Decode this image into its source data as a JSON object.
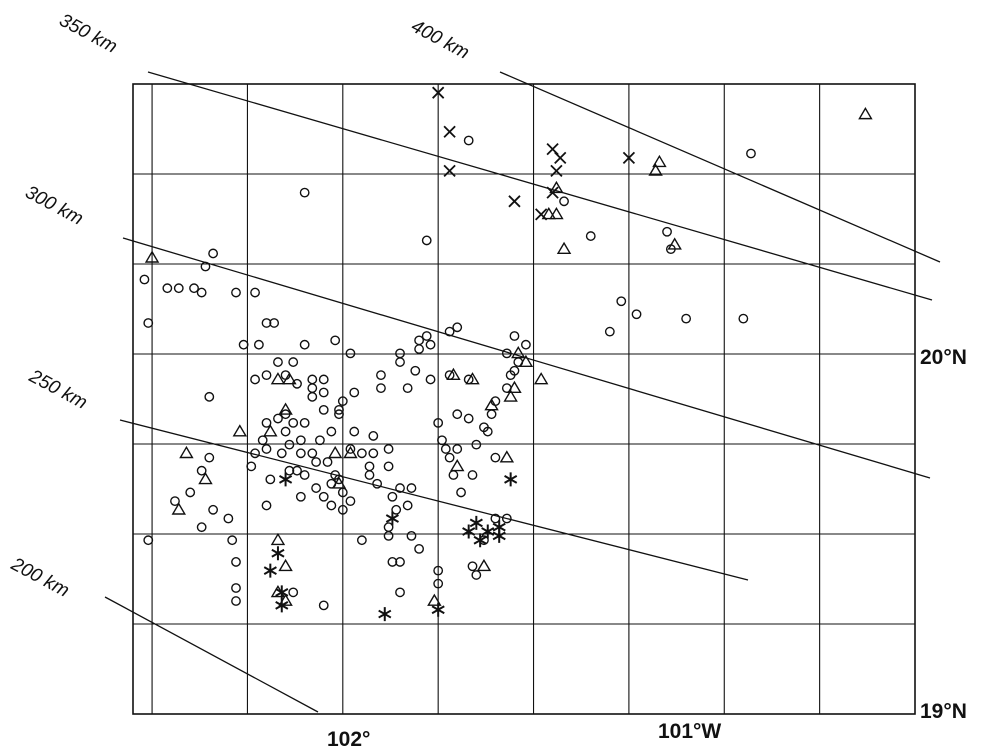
{
  "map": {
    "ink_color": "#111111",
    "background_color": "#ffffff",
    "lon_range": [
      -102.3,
      -100.25
    ],
    "lat_range": [
      18.95,
      20.4
    ],
    "axis_labels": {
      "lon_102": "102°",
      "lon_101": "101°W",
      "lat_20": "20°N",
      "lat_19": "19°N"
    },
    "contours": [
      {
        "label": "200 km",
        "km": 200
      },
      {
        "label": "250 km",
        "km": 250
      },
      {
        "label": "300 km",
        "km": 300
      },
      {
        "label": "350 km",
        "km": 350
      },
      {
        "label": "400 km",
        "km": 400
      }
    ],
    "symbol_types": [
      "circle",
      "triangle",
      "cross",
      "asterisk"
    ],
    "symbols": [
      {
        "t": "cross",
        "lon": -101.5,
        "lat": 20.38
      },
      {
        "t": "cross",
        "lon": -101.47,
        "lat": 20.29
      },
      {
        "t": "circle",
        "lon": -101.42,
        "lat": 20.27
      },
      {
        "t": "cross",
        "lon": -101.47,
        "lat": 20.2
      },
      {
        "t": "cross",
        "lon": -101.3,
        "lat": 20.13
      },
      {
        "t": "cross",
        "lon": -101.2,
        "lat": 20.25
      },
      {
        "t": "cross",
        "lon": -101.18,
        "lat": 20.23
      },
      {
        "t": "cross",
        "lon": -101.19,
        "lat": 20.2
      },
      {
        "t": "cross",
        "lon": -101.2,
        "lat": 20.15
      },
      {
        "t": "triangle",
        "lon": -101.19,
        "lat": 20.16
      },
      {
        "t": "circle",
        "lon": -101.17,
        "lat": 20.13
      },
      {
        "t": "cross",
        "lon": -101.23,
        "lat": 20.1
      },
      {
        "t": "triangle",
        "lon": -101.21,
        "lat": 20.1
      },
      {
        "t": "triangle",
        "lon": -101.19,
        "lat": 20.1
      },
      {
        "t": "cross",
        "lon": -101.0,
        "lat": 20.23
      },
      {
        "t": "triangle",
        "lon": -100.92,
        "lat": 20.22
      },
      {
        "t": "triangle",
        "lon": -100.93,
        "lat": 20.2
      },
      {
        "t": "circle",
        "lon": -100.68,
        "lat": 20.24
      },
      {
        "t": "triangle",
        "lon": -100.38,
        "lat": 20.33
      },
      {
        "t": "circle",
        "lon": -101.85,
        "lat": 20.15
      },
      {
        "t": "circle",
        "lon": -101.53,
        "lat": 20.04
      },
      {
        "t": "circle",
        "lon": -101.1,
        "lat": 20.05
      },
      {
        "t": "circle",
        "lon": -100.9,
        "lat": 20.06
      },
      {
        "t": "triangle",
        "lon": -100.88,
        "lat": 20.03
      },
      {
        "t": "circle",
        "lon": -100.89,
        "lat": 20.02
      },
      {
        "t": "triangle",
        "lon": -101.17,
        "lat": 20.02
      },
      {
        "t": "triangle",
        "lon": -102.25,
        "lat": 20.0
      },
      {
        "t": "circle",
        "lon": -102.09,
        "lat": 20.01
      },
      {
        "t": "circle",
        "lon": -102.11,
        "lat": 19.98
      },
      {
        "t": "circle",
        "lon": -102.27,
        "lat": 19.95
      },
      {
        "t": "circle",
        "lon": -102.21,
        "lat": 19.93
      },
      {
        "t": "circle",
        "lon": -102.14,
        "lat": 19.93
      },
      {
        "t": "circle",
        "lon": -102.18,
        "lat": 19.93
      },
      {
        "t": "circle",
        "lon": -102.12,
        "lat": 19.92
      },
      {
        "t": "circle",
        "lon": -102.03,
        "lat": 19.92
      },
      {
        "t": "circle",
        "lon": -101.98,
        "lat": 19.92
      },
      {
        "t": "circle",
        "lon": -102.26,
        "lat": 19.85
      },
      {
        "t": "circle",
        "lon": -101.95,
        "lat": 19.85
      },
      {
        "t": "circle",
        "lon": -101.93,
        "lat": 19.85
      },
      {
        "t": "circle",
        "lon": -102.01,
        "lat": 19.8
      },
      {
        "t": "circle",
        "lon": -101.97,
        "lat": 19.8
      },
      {
        "t": "circle",
        "lon": -101.92,
        "lat": 19.76
      },
      {
        "t": "circle",
        "lon": -101.98,
        "lat": 19.72
      },
      {
        "t": "circle",
        "lon": -101.9,
        "lat": 19.73
      },
      {
        "t": "circle",
        "lon": -101.95,
        "lat": 19.73
      },
      {
        "t": "circle",
        "lon": -101.88,
        "lat": 19.76
      },
      {
        "t": "circle",
        "lon": -101.87,
        "lat": 19.71
      },
      {
        "t": "triangle",
        "lon": -101.92,
        "lat": 19.72
      },
      {
        "t": "triangle",
        "lon": -101.89,
        "lat": 19.72
      },
      {
        "t": "circle",
        "lon": -101.85,
        "lat": 19.8
      },
      {
        "t": "circle",
        "lon": -101.77,
        "lat": 19.81
      },
      {
        "t": "circle",
        "lon": -101.73,
        "lat": 19.78
      },
      {
        "t": "circle",
        "lon": -101.72,
        "lat": 19.69
      },
      {
        "t": "circle",
        "lon": -101.8,
        "lat": 19.72
      },
      {
        "t": "circle",
        "lon": -101.83,
        "lat": 19.7
      },
      {
        "t": "circle",
        "lon": -101.8,
        "lat": 19.65
      },
      {
        "t": "circle",
        "lon": -101.76,
        "lat": 19.65
      },
      {
        "t": "circle",
        "lon": -101.75,
        "lat": 19.67
      },
      {
        "t": "circle",
        "lon": -101.76,
        "lat": 19.64
      },
      {
        "t": "circle",
        "lon": -101.78,
        "lat": 19.6
      },
      {
        "t": "circle",
        "lon": -101.81,
        "lat": 19.58
      },
      {
        "t": "circle",
        "lon": -101.73,
        "lat": 19.56
      },
      {
        "t": "circle",
        "lon": -101.72,
        "lat": 19.6
      },
      {
        "t": "circle",
        "lon": -101.82,
        "lat": 19.53
      },
      {
        "t": "circle",
        "lon": -101.85,
        "lat": 19.5
      },
      {
        "t": "circle",
        "lon": -101.82,
        "lat": 19.47
      },
      {
        "t": "circle",
        "lon": -101.86,
        "lat": 19.45
      },
      {
        "t": "circle",
        "lon": -101.78,
        "lat": 19.48
      },
      {
        "t": "circle",
        "lon": -101.76,
        "lat": 19.49
      },
      {
        "t": "circle",
        "lon": -101.75,
        "lat": 19.46
      },
      {
        "t": "circle",
        "lon": -101.8,
        "lat": 19.45
      },
      {
        "t": "circle",
        "lon": -101.73,
        "lat": 19.44
      },
      {
        "t": "triangle",
        "lon": -101.76,
        "lat": 19.48
      },
      {
        "t": "triangle",
        "lon": -101.77,
        "lat": 19.55
      },
      {
        "t": "triangle",
        "lon": -101.73,
        "lat": 19.55
      },
      {
        "t": "circle",
        "lon": -101.67,
        "lat": 19.59
      },
      {
        "t": "circle",
        "lon": -101.67,
        "lat": 19.55
      },
      {
        "t": "circle",
        "lon": -101.7,
        "lat": 19.55
      },
      {
        "t": "circle",
        "lon": -101.68,
        "lat": 19.5
      },
      {
        "t": "circle",
        "lon": -101.63,
        "lat": 19.52
      },
      {
        "t": "circle",
        "lon": -101.62,
        "lat": 19.45
      },
      {
        "t": "circle",
        "lon": -101.57,
        "lat": 19.47
      },
      {
        "t": "circle",
        "lon": -101.61,
        "lat": 19.42
      },
      {
        "t": "circle",
        "lon": -101.58,
        "lat": 19.43
      },
      {
        "t": "circle",
        "lon": -101.63,
        "lat": 19.38
      },
      {
        "t": "circle",
        "lon": -101.63,
        "lat": 19.36
      },
      {
        "t": "circle",
        "lon": -101.57,
        "lat": 19.36
      },
      {
        "t": "circle",
        "lon": -101.62,
        "lat": 19.3
      },
      {
        "t": "circle",
        "lon": -101.6,
        "lat": 19.3
      },
      {
        "t": "circle",
        "lon": -101.7,
        "lat": 19.35
      },
      {
        "t": "circle",
        "lon": -101.65,
        "lat": 19.7
      },
      {
        "t": "circle",
        "lon": -101.65,
        "lat": 19.73
      },
      {
        "t": "circle",
        "lon": -101.6,
        "lat": 19.76
      },
      {
        "t": "circle",
        "lon": -101.6,
        "lat": 19.78
      },
      {
        "t": "circle",
        "lon": -101.55,
        "lat": 19.79
      },
      {
        "t": "circle",
        "lon": -101.52,
        "lat": 19.8
      },
      {
        "t": "circle",
        "lon": -101.47,
        "lat": 19.83
      },
      {
        "t": "circle",
        "lon": -101.55,
        "lat": 19.81
      },
      {
        "t": "circle",
        "lon": -101.53,
        "lat": 19.82
      },
      {
        "t": "circle",
        "lon": -101.56,
        "lat": 19.74
      },
      {
        "t": "circle",
        "lon": -101.58,
        "lat": 19.7
      },
      {
        "t": "circle",
        "lon": -101.52,
        "lat": 19.72
      },
      {
        "t": "circle",
        "lon": -101.47,
        "lat": 19.73
      },
      {
        "t": "circle",
        "lon": -101.45,
        "lat": 19.84
      },
      {
        "t": "triangle",
        "lon": -101.46,
        "lat": 19.73
      },
      {
        "t": "circle",
        "lon": -101.45,
        "lat": 19.64
      },
      {
        "t": "circle",
        "lon": -101.48,
        "lat": 19.56
      },
      {
        "t": "circle",
        "lon": -101.45,
        "lat": 19.56
      },
      {
        "t": "circle",
        "lon": -101.47,
        "lat": 19.54
      },
      {
        "t": "circle",
        "lon": -101.46,
        "lat": 19.5
      },
      {
        "t": "circle",
        "lon": -101.38,
        "lat": 19.61
      },
      {
        "t": "circle",
        "lon": -101.37,
        "lat": 19.6
      },
      {
        "t": "circle",
        "lon": -101.32,
        "lat": 19.7
      },
      {
        "t": "circle",
        "lon": -101.27,
        "lat": 19.8
      },
      {
        "t": "triangle",
        "lon": -101.29,
        "lat": 19.78
      },
      {
        "t": "triangle",
        "lon": -101.3,
        "lat": 19.7
      },
      {
        "t": "circle",
        "lon": -101.32,
        "lat": 19.78
      },
      {
        "t": "circle",
        "lon": -101.31,
        "lat": 19.73
      },
      {
        "t": "circle",
        "lon": -101.35,
        "lat": 19.67
      },
      {
        "t": "triangle",
        "lon": -101.36,
        "lat": 19.66
      },
      {
        "t": "circle",
        "lon": -101.42,
        "lat": 19.72
      },
      {
        "t": "triangle",
        "lon": -101.41,
        "lat": 19.72
      },
      {
        "t": "triangle",
        "lon": -101.23,
        "lat": 19.72
      },
      {
        "t": "circle",
        "lon": -101.3,
        "lat": 19.82
      },
      {
        "t": "circle",
        "lon": -101.4,
        "lat": 19.57
      },
      {
        "t": "triangle",
        "lon": -101.32,
        "lat": 19.54
      },
      {
        "t": "circle",
        "lon": -101.35,
        "lat": 19.54
      },
      {
        "t": "circle",
        "lon": -101.41,
        "lat": 19.5
      },
      {
        "t": "circle",
        "lon": -101.44,
        "lat": 19.46
      },
      {
        "t": "triangle",
        "lon": -101.45,
        "lat": 19.52
      },
      {
        "t": "circle",
        "lon": -101.35,
        "lat": 19.4
      },
      {
        "t": "circle",
        "lon": -101.32,
        "lat": 19.4
      },
      {
        "t": "circle",
        "lon": -101.38,
        "lat": 19.35
      },
      {
        "t": "asterisk",
        "lon": -101.4,
        "lat": 19.39
      },
      {
        "t": "asterisk",
        "lon": -101.37,
        "lat": 19.37
      },
      {
        "t": "asterisk",
        "lon": -101.42,
        "lat": 19.37
      },
      {
        "t": "asterisk",
        "lon": -101.34,
        "lat": 19.36
      },
      {
        "t": "asterisk",
        "lon": -101.39,
        "lat": 19.35
      },
      {
        "t": "asterisk",
        "lon": -101.34,
        "lat": 19.38
      },
      {
        "t": "circle",
        "lon": -101.41,
        "lat": 19.29
      },
      {
        "t": "circle",
        "lon": -101.4,
        "lat": 19.27
      },
      {
        "t": "triangle",
        "lon": -101.38,
        "lat": 19.29
      },
      {
        "t": "asterisk",
        "lon": -101.31,
        "lat": 19.49
      },
      {
        "t": "asterisk",
        "lon": -101.9,
        "lat": 19.49
      },
      {
        "t": "asterisk",
        "lon": -101.62,
        "lat": 19.4
      },
      {
        "t": "circle",
        "lon": -101.95,
        "lat": 19.43
      },
      {
        "t": "circle",
        "lon": -102.05,
        "lat": 19.4
      },
      {
        "t": "circle",
        "lon": -102.12,
        "lat": 19.38
      },
      {
        "t": "circle",
        "lon": -102.26,
        "lat": 19.35
      },
      {
        "t": "triangle",
        "lon": -102.18,
        "lat": 19.42
      },
      {
        "t": "circle",
        "lon": -102.04,
        "lat": 19.35
      },
      {
        "t": "circle",
        "lon": -102.03,
        "lat": 19.3
      },
      {
        "t": "triangle",
        "lon": -101.92,
        "lat": 19.35
      },
      {
        "t": "triangle",
        "lon": -101.9,
        "lat": 19.29
      },
      {
        "t": "asterisk",
        "lon": -101.92,
        "lat": 19.32
      },
      {
        "t": "asterisk",
        "lon": -101.94,
        "lat": 19.28
      },
      {
        "t": "asterisk",
        "lon": -101.91,
        "lat": 19.23
      },
      {
        "t": "triangle",
        "lon": -101.92,
        "lat": 19.23
      },
      {
        "t": "circle",
        "lon": -101.88,
        "lat": 19.23
      },
      {
        "t": "triangle",
        "lon": -101.9,
        "lat": 19.21
      },
      {
        "t": "asterisk",
        "lon": -101.91,
        "lat": 19.2
      },
      {
        "t": "circle",
        "lon": -101.8,
        "lat": 19.2
      },
      {
        "t": "asterisk",
        "lon": -101.64,
        "lat": 19.18
      },
      {
        "t": "asterisk",
        "lon": -101.5,
        "lat": 19.19
      },
      {
        "t": "triangle",
        "lon": -101.51,
        "lat": 19.21
      },
      {
        "t": "circle",
        "lon": -101.5,
        "lat": 19.25
      },
      {
        "t": "circle",
        "lon": -101.6,
        "lat": 19.23
      },
      {
        "t": "circle",
        "lon": -101.55,
        "lat": 19.33
      },
      {
        "t": "circle",
        "lon": -101.5,
        "lat": 19.28
      },
      {
        "t": "circle",
        "lon": -102.03,
        "lat": 19.21
      },
      {
        "t": "circle",
        "lon": -102.03,
        "lat": 19.24
      },
      {
        "t": "circle",
        "lon": -102.09,
        "lat": 19.42
      },
      {
        "t": "circle",
        "lon": -102.1,
        "lat": 19.54
      },
      {
        "t": "circle",
        "lon": -102.12,
        "lat": 19.51
      },
      {
        "t": "triangle",
        "lon": -102.11,
        "lat": 19.49
      },
      {
        "t": "circle",
        "lon": -102.15,
        "lat": 19.46
      },
      {
        "t": "triangle",
        "lon": -102.16,
        "lat": 19.55
      },
      {
        "t": "circle",
        "lon": -102.19,
        "lat": 19.44
      },
      {
        "t": "circle",
        "lon": -102.1,
        "lat": 19.68
      },
      {
        "t": "circle",
        "lon": -101.94,
        "lat": 19.49
      },
      {
        "t": "circle",
        "lon": -101.87,
        "lat": 19.51
      },
      {
        "t": "circle",
        "lon": -101.79,
        "lat": 19.53
      },
      {
        "t": "circle",
        "lon": -101.83,
        "lat": 19.55
      },
      {
        "t": "circle",
        "lon": -101.78,
        "lat": 19.43
      },
      {
        "t": "circle",
        "lon": -101.75,
        "lat": 19.42
      },
      {
        "t": "circle",
        "lon": -101.77,
        "lat": 19.5
      },
      {
        "t": "circle",
        "lon": -101.66,
        "lat": 19.48
      },
      {
        "t": "circle",
        "lon": -101.85,
        "lat": 19.62
      },
      {
        "t": "circle",
        "lon": -101.86,
        "lat": 19.58
      },
      {
        "t": "circle",
        "lon": -101.88,
        "lat": 19.62
      },
      {
        "t": "circle",
        "lon": -101.83,
        "lat": 19.72
      },
      {
        "t": "circle",
        "lon": -101.83,
        "lat": 19.68
      },
      {
        "t": "circle",
        "lon": -101.8,
        "lat": 19.69
      },
      {
        "t": "circle",
        "lon": -101.98,
        "lat": 19.55
      },
      {
        "t": "circle",
        "lon": -101.99,
        "lat": 19.52
      },
      {
        "t": "circle",
        "lon": -101.95,
        "lat": 19.56
      },
      {
        "t": "circle",
        "lon": -101.95,
        "lat": 19.62
      },
      {
        "t": "triangle",
        "lon": -101.94,
        "lat": 19.6
      },
      {
        "t": "triangle",
        "lon": -101.9,
        "lat": 19.65
      },
      {
        "t": "circle",
        "lon": -101.92,
        "lat": 19.63
      },
      {
        "t": "circle",
        "lon": -101.9,
        "lat": 19.6
      },
      {
        "t": "triangle",
        "lon": -102.02,
        "lat": 19.6
      },
      {
        "t": "circle",
        "lon": -101.96,
        "lat": 19.58
      },
      {
        "t": "circle",
        "lon": -101.91,
        "lat": 19.55
      },
      {
        "t": "circle",
        "lon": -101.86,
        "lat": 19.55
      },
      {
        "t": "circle",
        "lon": -101.89,
        "lat": 19.51
      },
      {
        "t": "circle",
        "lon": -101.9,
        "lat": 19.64
      },
      {
        "t": "circle",
        "lon": -101.89,
        "lat": 19.57
      },
      {
        "t": "circle",
        "lon": -101.6,
        "lat": 19.47
      },
      {
        "t": "circle",
        "lon": -101.68,
        "lat": 19.52
      },
      {
        "t": "circle",
        "lon": -101.63,
        "lat": 19.56
      },
      {
        "t": "circle",
        "lon": -101.5,
        "lat": 19.62
      },
      {
        "t": "circle",
        "lon": -101.49,
        "lat": 19.58
      },
      {
        "t": "circle",
        "lon": -101.42,
        "lat": 19.63
      },
      {
        "t": "circle",
        "lon": -101.36,
        "lat": 19.64
      },
      {
        "t": "circle",
        "lon": -101.3,
        "lat": 19.74
      },
      {
        "t": "triangle",
        "lon": -101.31,
        "lat": 19.68
      },
      {
        "t": "circle",
        "lon": -101.29,
        "lat": 19.76
      },
      {
        "t": "triangle",
        "lon": -101.27,
        "lat": 19.76
      },
      {
        "t": "circle",
        "lon": -101.05,
        "lat": 19.83
      },
      {
        "t": "circle",
        "lon": -101.02,
        "lat": 19.9
      },
      {
        "t": "circle",
        "lon": -100.98,
        "lat": 19.87
      },
      {
        "t": "circle",
        "lon": -100.85,
        "lat": 19.86
      },
      {
        "t": "circle",
        "lon": -100.7,
        "lat": 19.86
      }
    ]
  }
}
